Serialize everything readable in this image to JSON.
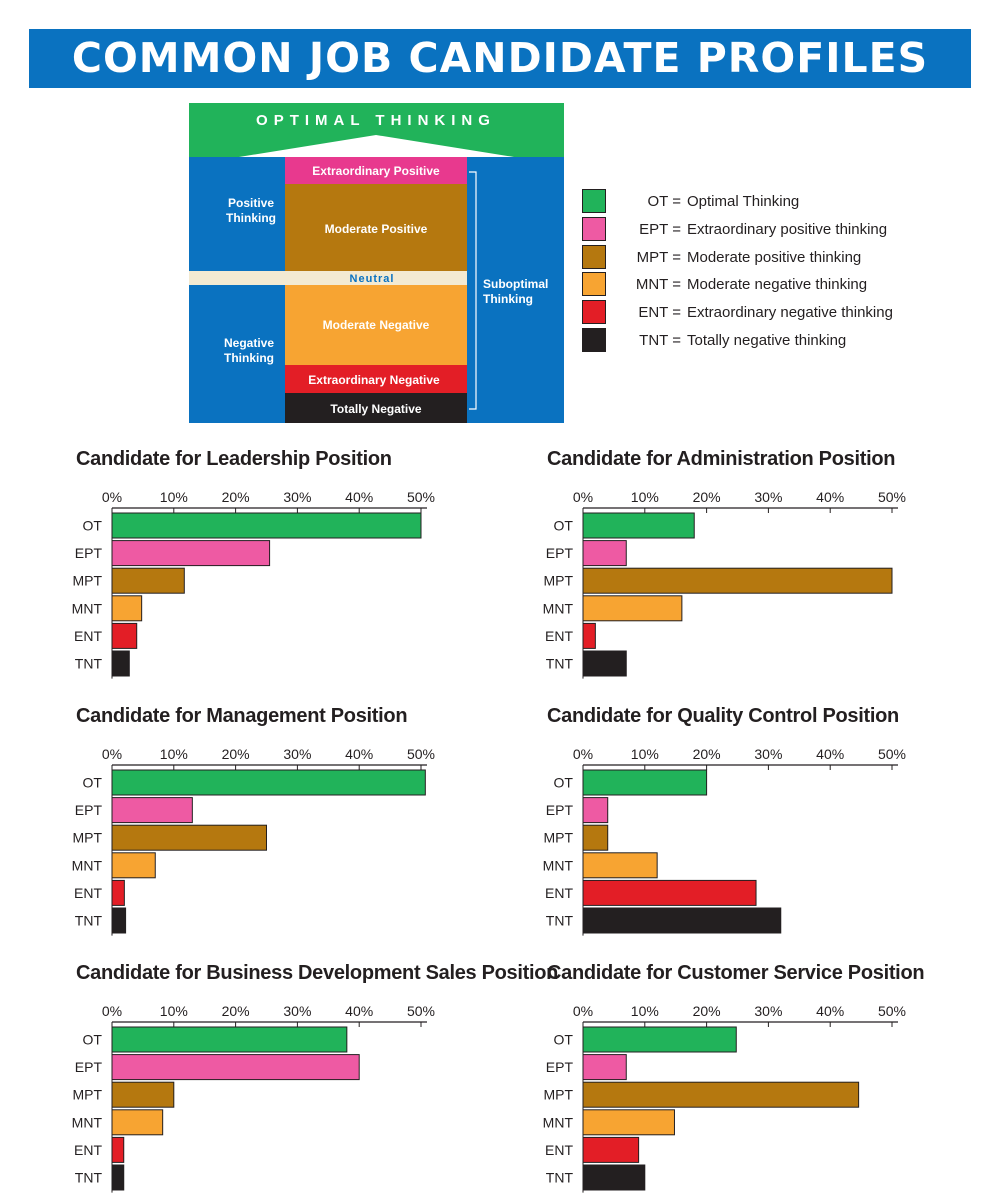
{
  "page_title": "COMMON JOB CANDIDATE PROFILES",
  "diagram": {
    "top": "OPTIMAL THINKING",
    "positive_label": "Positive Thinking",
    "negative_label": "Negative Thinking",
    "suboptimal_label": "Suboptimal Thinking",
    "layers": [
      {
        "label": "Extraordinary Positive",
        "color": "#e8398e"
      },
      {
        "label": "Moderate Positive",
        "color": "#b5780f"
      },
      {
        "label": "Neutral",
        "color": "#f3ead2"
      },
      {
        "label": "Moderate Negative",
        "color": "#f7a432"
      },
      {
        "label": "Extraordinary Negative",
        "color": "#e31e26"
      },
      {
        "label": "Totally Negative",
        "color": "#231f20"
      }
    ],
    "colors": {
      "optimal": "#21b35a",
      "frame": "#0a72c0"
    }
  },
  "legend": [
    {
      "abbr": "OT =",
      "text": "Optimal Thinking",
      "color": "#21b35a"
    },
    {
      "abbr": "EPT =",
      "text": "Extraordinary positive thinking",
      "color": "#ee5aa3"
    },
    {
      "abbr": "MPT =",
      "text": "Moderate positive thinking",
      "color": "#b5780f"
    },
    {
      "abbr": "MNT =",
      "text": "Moderate negative thinking",
      "color": "#f7a432"
    },
    {
      "abbr": "ENT =",
      "text": "Extraordinary negative thinking",
      "color": "#e31e26"
    },
    {
      "abbr": "TNT =",
      "text": "Totally negative thinking",
      "color": "#231f20"
    }
  ],
  "chart_data": [
    {
      "type": "bar",
      "orientation": "horizontal",
      "title": "Candidate for Leadership Position",
      "categories": [
        "OT",
        "EPT",
        "MPT",
        "MNT",
        "ENT",
        "TNT"
      ],
      "values": [
        50,
        25.5,
        11.7,
        4.8,
        4,
        2.8
      ],
      "xlim": [
        0,
        50
      ],
      "ticks": [
        "0%",
        "10%",
        "20%",
        "30%",
        "40%",
        "50%"
      ],
      "colors": [
        "#21b35a",
        "#ee5aa3",
        "#b5780f",
        "#f7a432",
        "#e31e26",
        "#231f20"
      ]
    },
    {
      "type": "bar",
      "orientation": "horizontal",
      "title": "Candidate for Administration Position",
      "categories": [
        "OT",
        "EPT",
        "MPT",
        "MNT",
        "ENT",
        "TNT"
      ],
      "values": [
        18,
        7,
        50,
        16,
        2,
        7
      ],
      "xlim": [
        0,
        50
      ],
      "ticks": [
        "0%",
        "10%",
        "20%",
        "30%",
        "40%",
        "50%"
      ],
      "colors": [
        "#21b35a",
        "#ee5aa3",
        "#b5780f",
        "#f7a432",
        "#e31e26",
        "#231f20"
      ]
    },
    {
      "type": "bar",
      "orientation": "horizontal",
      "title": "Candidate for Management Position",
      "categories": [
        "OT",
        "EPT",
        "MPT",
        "MNT",
        "ENT",
        "TNT"
      ],
      "values": [
        50.7,
        13,
        25,
        7,
        2,
        2.2
      ],
      "xlim": [
        0,
        50
      ],
      "ticks": [
        "0%",
        "10%",
        "20%",
        "30%",
        "40%",
        "50%"
      ],
      "colors": [
        "#21b35a",
        "#ee5aa3",
        "#b5780f",
        "#f7a432",
        "#e31e26",
        "#231f20"
      ]
    },
    {
      "type": "bar",
      "orientation": "horizontal",
      "title": "Candidate for Quality Control Position",
      "categories": [
        "OT",
        "EPT",
        "MPT",
        "MNT",
        "ENT",
        "TNT"
      ],
      "values": [
        20,
        4,
        4,
        12,
        28,
        32
      ],
      "xlim": [
        0,
        50
      ],
      "ticks": [
        "0%",
        "10%",
        "20%",
        "30%",
        "40%",
        "50%"
      ],
      "colors": [
        "#21b35a",
        "#ee5aa3",
        "#b5780f",
        "#f7a432",
        "#e31e26",
        "#231f20"
      ]
    },
    {
      "type": "bar",
      "orientation": "horizontal",
      "title": "Candidate for Business Development Sales Position",
      "categories": [
        "OT",
        "EPT",
        "MPT",
        "MNT",
        "ENT",
        "TNT"
      ],
      "values": [
        38,
        40,
        10,
        8.2,
        1.9,
        1.9
      ],
      "xlim": [
        0,
        50
      ],
      "ticks": [
        "0%",
        "10%",
        "20%",
        "30%",
        "40%",
        "50%"
      ],
      "colors": [
        "#21b35a",
        "#ee5aa3",
        "#b5780f",
        "#f7a432",
        "#e31e26",
        "#231f20"
      ]
    },
    {
      "type": "bar",
      "orientation": "horizontal",
      "title": "Candidate for Customer Service Position",
      "categories": [
        "OT",
        "EPT",
        "MPT",
        "MNT",
        "ENT",
        "TNT"
      ],
      "values": [
        24.8,
        7,
        44.6,
        14.8,
        9,
        10
      ],
      "xlim": [
        0,
        50
      ],
      "ticks": [
        "0%",
        "10%",
        "20%",
        "30%",
        "40%",
        "50%"
      ],
      "colors": [
        "#21b35a",
        "#ee5aa3",
        "#b5780f",
        "#f7a432",
        "#e31e26",
        "#231f20"
      ]
    }
  ]
}
